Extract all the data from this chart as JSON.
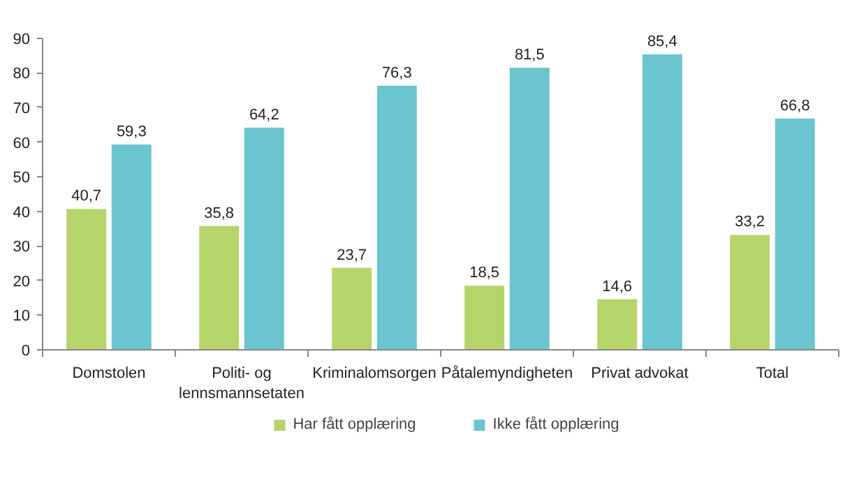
{
  "chart_data": {
    "type": "bar",
    "categories": [
      "Domstolen",
      "Politi- og\nlennsmannsetaten",
      "Kriminalomsorgen",
      "Påtalemyndigheten",
      "Privat advokat",
      "Total"
    ],
    "series": [
      {
        "name": "Har fått opplæring",
        "color": "#b5d56a",
        "values": [
          40.7,
          35.8,
          23.7,
          18.5,
          14.6,
          33.2
        ],
        "value_labels": [
          "40,7",
          "35,8",
          "23,7",
          "18,5",
          "14,6",
          "33,2"
        ]
      },
      {
        "name": "Ikke fått opplæring",
        "color": "#6bc5d0",
        "values": [
          59.3,
          64.2,
          76.3,
          81.5,
          85.4,
          66.8
        ],
        "value_labels": [
          "59,3",
          "64,2",
          "76,3",
          "81,5",
          "85,4",
          "66,8"
        ]
      }
    ],
    "ylim": [
      0,
      90
    ],
    "yticks": [
      0,
      10,
      20,
      30,
      40,
      50,
      60,
      70,
      80,
      90
    ],
    "grid": false,
    "legend": "bottom"
  }
}
